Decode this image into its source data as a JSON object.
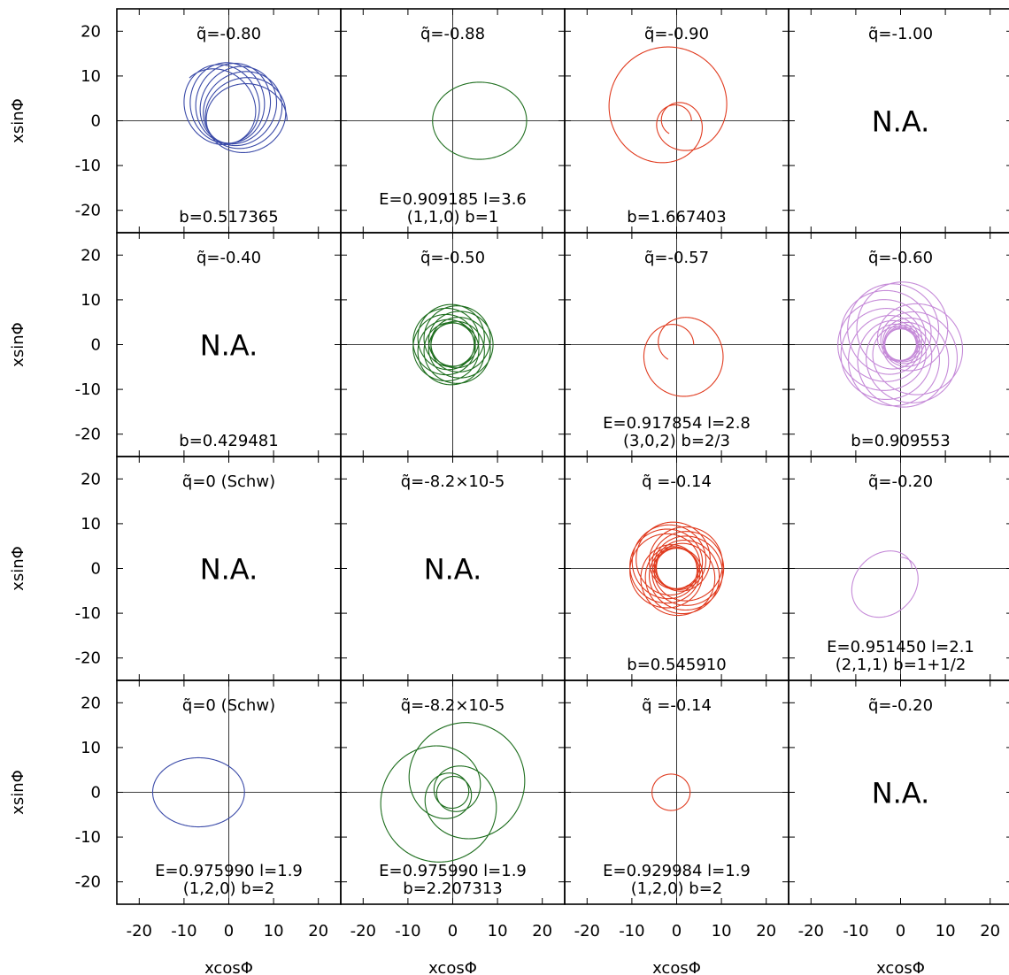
{
  "chart_data": {
    "type": "line",
    "layout": "4x4 grid of orbit panels",
    "xlabel": "xcosΦ",
    "ylabel": "xsinΦ",
    "xlim": [
      -25,
      25
    ],
    "ylim": [
      -25,
      25
    ],
    "xticks": [
      "-20",
      "-10",
      "0",
      "10",
      "20"
    ],
    "yticks": [
      "20",
      "10",
      "0",
      "-10",
      "-20"
    ],
    "colors": {
      "blue": "#3a4aa8",
      "green": "#1e6e1e",
      "red": "#e03a1e",
      "violet": "#c58ad8"
    },
    "panels": [
      {
        "row": 0,
        "col": 0,
        "q_label": "q̃=-0.80",
        "lines": [
          "b=0.517365"
        ],
        "orbit": {
          "kind": "rosette",
          "color": "blue",
          "rmin": 5,
          "rmax": 13,
          "omega": 0.95,
          "start": 3.141593,
          "turns": 7,
          "axes": 0
        },
        "na": ""
      },
      {
        "row": 0,
        "col": 1,
        "q_label": "q̃=-0.88",
        "lines": [
          "E=0.909185   l=3.6",
          "(1,1,0)  b=1"
        ],
        "orbit": {
          "kind": "rosette",
          "color": "green",
          "rmin": 4.5,
          "rmax": 16.5,
          "omega": 1.0,
          "start": 3.141593,
          "turns": 1,
          "axes": 0
        },
        "na": ""
      },
      {
        "row": 0,
        "col": 2,
        "q_label": "q̃=-0.90",
        "lines": [
          "b=1.667403"
        ],
        "orbit": {
          "kind": "rosette",
          "color": "red",
          "rmin": 3.3,
          "rmax": 17,
          "omega": 0.375,
          "start": 0,
          "turns": 1,
          "axes": 0
        },
        "na": ""
      },
      {
        "row": 0,
        "col": 3,
        "q_label": "q̃=-1.00",
        "lines": [],
        "orbit": null,
        "na": "N.A."
      },
      {
        "row": 1,
        "col": 0,
        "q_label": "q̃=-0.40",
        "lines": [
          "b=0.429481"
        ],
        "orbit": null,
        "na": "N.A."
      },
      {
        "row": 1,
        "col": 1,
        "q_label": "q̃=-0.50",
        "lines": [],
        "orbit": {
          "kind": "rosette",
          "color": "green",
          "rmin": 4.8,
          "rmax": 9,
          "omega": 0.7,
          "start": 0,
          "turns": 9,
          "axes": 0
        },
        "na": ""
      },
      {
        "row": 1,
        "col": 2,
        "q_label": "q̃=-0.57",
        "lines": [
          "E=0.917854   l=2.8",
          "(3,0,2)  b=2/3"
        ],
        "orbit": {
          "kind": "rosette",
          "color": "red",
          "rmin": 3.8,
          "rmax": 12,
          "omega": 0.6,
          "start": 0,
          "turns": 1,
          "axes": 0
        },
        "na": ""
      },
      {
        "row": 1,
        "col": 3,
        "q_label": "q̃=-0.60",
        "lines": [
          "b=0.909553"
        ],
        "orbit": {
          "kind": "rosette",
          "color": "violet",
          "rmin": 3.5,
          "rmax": 14,
          "omega": 0.5236,
          "start": 0,
          "turns": 9,
          "axes": 0
        },
        "na": ""
      },
      {
        "row": 2,
        "col": 0,
        "q_label": "q̃=0 (Schw)",
        "lines": [],
        "orbit": null,
        "na": "N.A."
      },
      {
        "row": 2,
        "col": 1,
        "q_label": "q̃=-8.2×10-5",
        "lines": [],
        "orbit": null,
        "na": "N.A."
      },
      {
        "row": 2,
        "col": 2,
        "q_label": "q̃ =-0.14",
        "lines": [
          "b=0.545910"
        ],
        "orbit": {
          "kind": "rosette",
          "color": "red",
          "rmin": 4.5,
          "rmax": 10.5,
          "omega": 0.65,
          "start": 0,
          "turns": 9,
          "axes": 0
        },
        "na": ""
      },
      {
        "row": 2,
        "col": 3,
        "q_label": "q̃=-0.20",
        "lines": [
          "E=0.951450   l=2.1",
          "(2,1,1)  b=1+1/2"
        ],
        "orbit": {
          "kind": "rosette",
          "color": "violet",
          "rmin": 2.5,
          "rmax": 13,
          "omega": 0.8,
          "start": 0,
          "turns": 1,
          "axes": 0
        },
        "na": ""
      },
      {
        "row": 3,
        "col": 0,
        "q_label": "q̃=0 (Schw)",
        "lines": [
          "E=0.975990   l=1.9",
          "(1,2,0)  b=2"
        ],
        "orbit": {
          "kind": "rosette",
          "color": "blue",
          "rmin": 3.5,
          "rmax": 17,
          "omega": 1.0,
          "start": 0,
          "turns": 1,
          "axes": 0
        },
        "na": ""
      },
      {
        "row": 3,
        "col": 1,
        "q_label": "q̃=-8.2×10-5",
        "lines": [
          "E=0.975990   l=1.9",
          "b=2.207313"
        ],
        "orbit": {
          "kind": "rosette",
          "color": "green",
          "rmin": 3.5,
          "rmax": 17,
          "omega": 0.4,
          "start": 0.35,
          "turns": 5.3,
          "axes": 0
        },
        "na": ""
      },
      {
        "row": 3,
        "col": 2,
        "q_label": "q̃ =-0.14",
        "lines": [
          "E=0.929984   l=1.9",
          "(1,2,0)  b=2"
        ],
        "orbit": {
          "kind": "rosette",
          "color": "red",
          "rmin": 3,
          "rmax": 5.5,
          "omega": 1.0,
          "start": 0,
          "turns": 1,
          "axes": 0
        },
        "na": ""
      },
      {
        "row": 3,
        "col": 3,
        "q_label": "q̃=-0.20",
        "lines": [],
        "orbit": null,
        "na": "N.A."
      }
    ]
  }
}
